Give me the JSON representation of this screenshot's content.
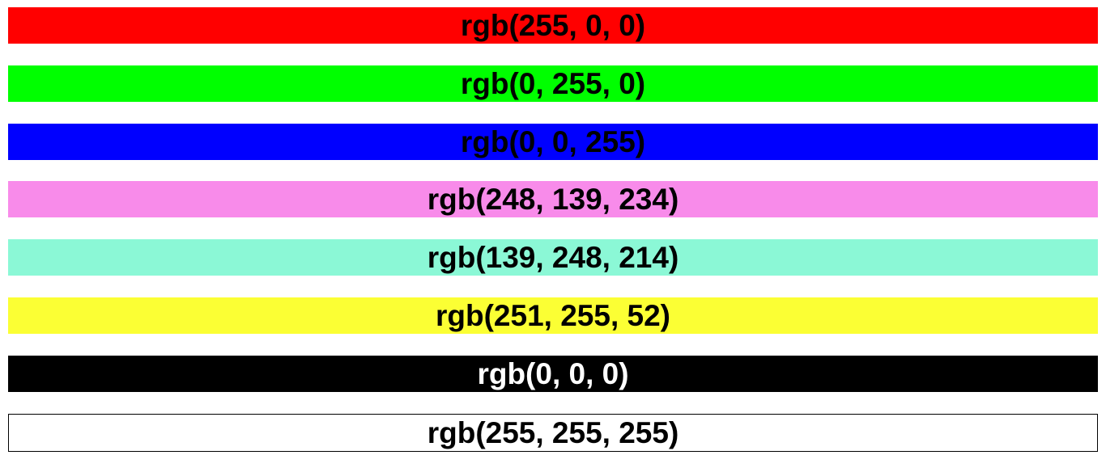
{
  "swatches": [
    {
      "label": "rgb(255, 0, 0)",
      "color": "#ff0000",
      "text_color": "#000000"
    },
    {
      "label": "rgb(0, 255, 0)",
      "color": "#00ff00",
      "text_color": "#000000"
    },
    {
      "label": "rgb(0, 0, 255)",
      "color": "#0000ff",
      "text_color": "#000000"
    },
    {
      "label": "rgb(248, 139, 234)",
      "color": "#f88bea",
      "text_color": "#000000"
    },
    {
      "label": "rgb(139, 248, 214)",
      "color": "#8bf8d6",
      "text_color": "#000000"
    },
    {
      "label": "rgb(251, 255, 52)",
      "color": "#fbff34",
      "text_color": "#000000"
    },
    {
      "label": "rgb(0, 0, 0)",
      "color": "#000000",
      "text_color": "#ffffff"
    },
    {
      "label": "rgb(255, 255, 255)",
      "color": "#ffffff",
      "text_color": "#000000"
    }
  ]
}
